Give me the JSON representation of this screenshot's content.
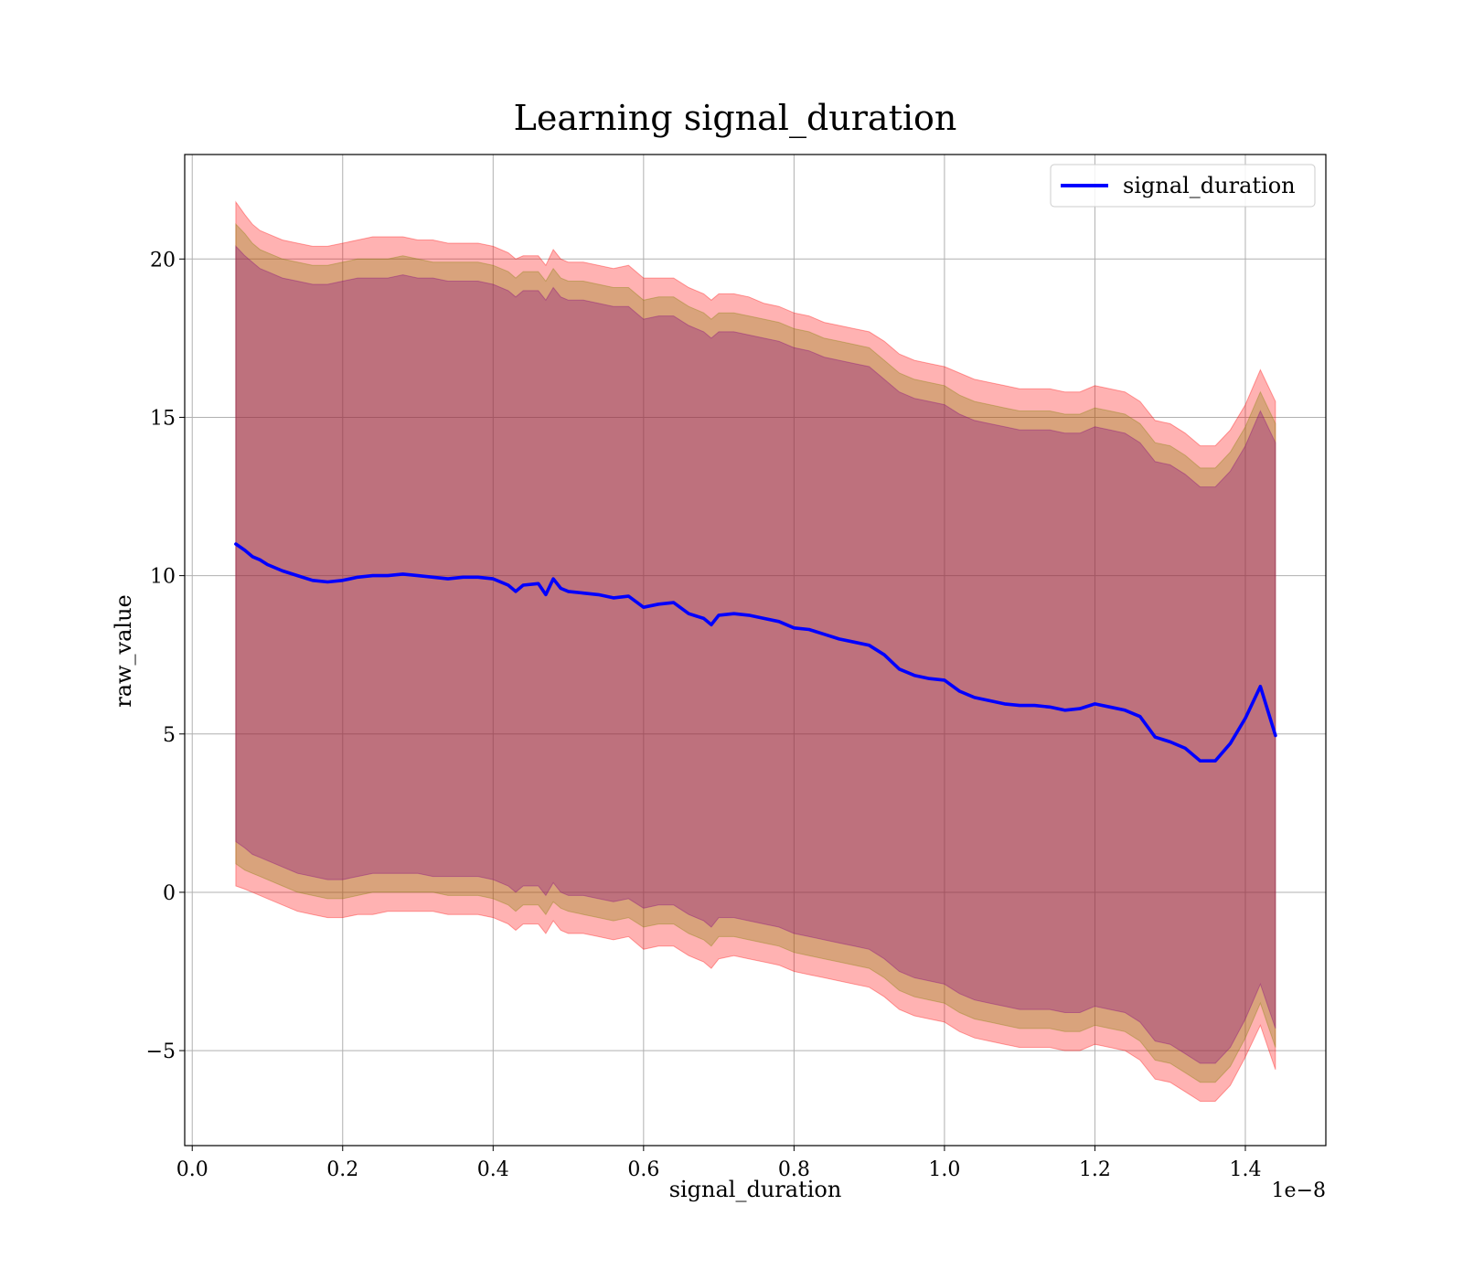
{
  "chart_data": {
    "type": "line",
    "title": "Learning signal_duration",
    "xlabel": "signal_duration",
    "ylabel": "raw_value",
    "x_offset_label": "1e−8",
    "xlim": [
      -0.01,
      1.507
    ],
    "ylim": [
      -8.0,
      23.3
    ],
    "xticks": [
      0.0,
      0.2,
      0.4,
      0.6,
      0.8,
      1.0,
      1.2,
      1.4
    ],
    "xtick_labels": [
      "0.0",
      "0.2",
      "0.4",
      "0.6",
      "0.8",
      "1.0",
      "1.2",
      "1.4"
    ],
    "yticks": [
      -5,
      0,
      5,
      10,
      15,
      20
    ],
    "ytick_labels": [
      "−5",
      "0",
      "5",
      "10",
      "15",
      "20"
    ],
    "grid": true,
    "legend": {
      "position": "top-right",
      "entries": [
        "signal_duration"
      ]
    },
    "colors": {
      "line": "#0000ff",
      "band_outer": "#ff0000",
      "band_middle": "#808000",
      "band_inner": "#800080"
    },
    "series": [
      {
        "name": "signal_duration",
        "x": [
          0.058,
          0.07,
          0.08,
          0.09,
          0.1,
          0.12,
          0.14,
          0.16,
          0.18,
          0.2,
          0.22,
          0.24,
          0.26,
          0.28,
          0.3,
          0.32,
          0.34,
          0.36,
          0.38,
          0.4,
          0.42,
          0.43,
          0.44,
          0.46,
          0.47,
          0.48,
          0.49,
          0.5,
          0.52,
          0.54,
          0.56,
          0.58,
          0.6,
          0.62,
          0.64,
          0.66,
          0.68,
          0.69,
          0.7,
          0.72,
          0.74,
          0.76,
          0.78,
          0.8,
          0.82,
          0.84,
          0.86,
          0.88,
          0.9,
          0.92,
          0.94,
          0.96,
          0.98,
          1.0,
          1.02,
          1.04,
          1.06,
          1.08,
          1.1,
          1.12,
          1.14,
          1.16,
          1.18,
          1.2,
          1.22,
          1.24,
          1.26,
          1.28,
          1.3,
          1.32,
          1.34,
          1.36,
          1.38,
          1.4,
          1.42,
          1.44
        ],
        "values": [
          11.0,
          10.8,
          10.6,
          10.5,
          10.35,
          10.15,
          10.0,
          9.85,
          9.8,
          9.85,
          9.95,
          10.0,
          10.0,
          10.05,
          10.0,
          9.95,
          9.9,
          9.95,
          9.95,
          9.9,
          9.7,
          9.5,
          9.7,
          9.75,
          9.4,
          9.9,
          9.6,
          9.5,
          9.45,
          9.4,
          9.3,
          9.35,
          9.0,
          9.1,
          9.15,
          8.8,
          8.65,
          8.45,
          8.75,
          8.8,
          8.75,
          8.65,
          8.55,
          8.35,
          8.3,
          8.15,
          8.0,
          7.9,
          7.8,
          7.5,
          7.05,
          6.85,
          6.75,
          6.7,
          6.35,
          6.15,
          6.05,
          5.95,
          5.9,
          5.9,
          5.85,
          5.75,
          5.8,
          5.95,
          5.85,
          5.75,
          5.55,
          4.9,
          4.75,
          4.55,
          4.15,
          4.15,
          4.7,
          5.5,
          6.5,
          4.95
        ]
      }
    ],
    "bands": [
      {
        "name": "outer",
        "upper": [
          21.8,
          21.4,
          21.1,
          20.9,
          20.8,
          20.6,
          20.5,
          20.4,
          20.4,
          20.5,
          20.6,
          20.7,
          20.7,
          20.7,
          20.6,
          20.6,
          20.5,
          20.5,
          20.5,
          20.4,
          20.2,
          20.0,
          20.1,
          20.1,
          19.8,
          20.3,
          20.0,
          19.9,
          19.9,
          19.8,
          19.7,
          19.8,
          19.4,
          19.4,
          19.4,
          19.1,
          18.9,
          18.7,
          18.9,
          18.9,
          18.8,
          18.6,
          18.5,
          18.3,
          18.2,
          18.0,
          17.9,
          17.8,
          17.7,
          17.4,
          17.0,
          16.8,
          16.7,
          16.6,
          16.4,
          16.2,
          16.1,
          16.0,
          15.9,
          15.9,
          15.9,
          15.8,
          15.8,
          16.0,
          15.9,
          15.8,
          15.5,
          14.9,
          14.8,
          14.5,
          14.1,
          14.1,
          14.6,
          15.4,
          16.5,
          15.5
        ],
        "lower": [
          0.2,
          0.1,
          0.0,
          -0.1,
          -0.2,
          -0.4,
          -0.6,
          -0.7,
          -0.8,
          -0.8,
          -0.7,
          -0.7,
          -0.6,
          -0.6,
          -0.6,
          -0.6,
          -0.7,
          -0.7,
          -0.7,
          -0.8,
          -1.0,
          -1.2,
          -1.0,
          -1.0,
          -1.3,
          -0.9,
          -1.2,
          -1.3,
          -1.3,
          -1.4,
          -1.5,
          -1.4,
          -1.8,
          -1.7,
          -1.7,
          -2.0,
          -2.2,
          -2.4,
          -2.1,
          -2.0,
          -2.1,
          -2.2,
          -2.3,
          -2.5,
          -2.6,
          -2.7,
          -2.8,
          -2.9,
          -3.0,
          -3.3,
          -3.7,
          -3.9,
          -4.0,
          -4.1,
          -4.4,
          -4.6,
          -4.7,
          -4.8,
          -4.9,
          -4.9,
          -4.9,
          -5.0,
          -5.0,
          -4.8,
          -4.9,
          -5.0,
          -5.3,
          -5.9,
          -6.0,
          -6.3,
          -6.6,
          -6.6,
          -6.1,
          -5.2,
          -4.2,
          -5.6
        ]
      },
      {
        "name": "middle",
        "upper": [
          21.1,
          20.8,
          20.5,
          20.3,
          20.2,
          20.0,
          19.9,
          19.8,
          19.8,
          19.9,
          20.0,
          20.0,
          20.0,
          20.1,
          20.0,
          19.9,
          19.9,
          19.9,
          19.9,
          19.8,
          19.6,
          19.4,
          19.6,
          19.6,
          19.3,
          19.7,
          19.4,
          19.3,
          19.3,
          19.2,
          19.1,
          19.1,
          18.7,
          18.8,
          18.8,
          18.5,
          18.3,
          18.1,
          18.3,
          18.3,
          18.2,
          18.1,
          18.0,
          17.8,
          17.7,
          17.5,
          17.4,
          17.3,
          17.2,
          16.8,
          16.4,
          16.2,
          16.1,
          16.0,
          15.7,
          15.5,
          15.4,
          15.3,
          15.2,
          15.2,
          15.2,
          15.1,
          15.1,
          15.3,
          15.2,
          15.1,
          14.8,
          14.2,
          14.1,
          13.8,
          13.4,
          13.4,
          13.9,
          14.7,
          15.8,
          14.8
        ],
        "lower": [
          0.9,
          0.7,
          0.6,
          0.5,
          0.4,
          0.2,
          0.0,
          -0.1,
          -0.2,
          -0.2,
          -0.1,
          0.0,
          0.0,
          0.0,
          0.0,
          0.0,
          -0.1,
          -0.1,
          -0.1,
          -0.2,
          -0.4,
          -0.6,
          -0.4,
          -0.4,
          -0.7,
          -0.3,
          -0.5,
          -0.6,
          -0.7,
          -0.8,
          -0.9,
          -0.8,
          -1.1,
          -1.0,
          -1.0,
          -1.3,
          -1.5,
          -1.7,
          -1.4,
          -1.4,
          -1.5,
          -1.6,
          -1.7,
          -1.9,
          -2.0,
          -2.1,
          -2.2,
          -2.3,
          -2.4,
          -2.7,
          -3.1,
          -3.3,
          -3.4,
          -3.5,
          -3.8,
          -4.0,
          -4.1,
          -4.2,
          -4.3,
          -4.3,
          -4.3,
          -4.4,
          -4.4,
          -4.2,
          -4.3,
          -4.4,
          -4.7,
          -5.3,
          -5.4,
          -5.7,
          -6.0,
          -6.0,
          -5.5,
          -4.6,
          -3.5,
          -4.9
        ]
      },
      {
        "name": "inner",
        "upper": [
          20.4,
          20.1,
          19.9,
          19.7,
          19.6,
          19.4,
          19.3,
          19.2,
          19.2,
          19.3,
          19.4,
          19.4,
          19.4,
          19.5,
          19.4,
          19.4,
          19.3,
          19.3,
          19.3,
          19.2,
          19.0,
          18.8,
          19.0,
          19.0,
          18.7,
          19.1,
          18.8,
          18.7,
          18.7,
          18.6,
          18.5,
          18.5,
          18.1,
          18.2,
          18.2,
          17.9,
          17.7,
          17.5,
          17.7,
          17.7,
          17.6,
          17.5,
          17.4,
          17.2,
          17.1,
          16.9,
          16.8,
          16.7,
          16.6,
          16.2,
          15.8,
          15.6,
          15.5,
          15.4,
          15.1,
          14.9,
          14.8,
          14.7,
          14.6,
          14.6,
          14.6,
          14.5,
          14.5,
          14.7,
          14.6,
          14.5,
          14.2,
          13.6,
          13.5,
          13.2,
          12.8,
          12.8,
          13.3,
          14.1,
          15.2,
          14.2
        ],
        "lower": [
          1.6,
          1.4,
          1.2,
          1.1,
          1.0,
          0.8,
          0.6,
          0.5,
          0.4,
          0.4,
          0.5,
          0.6,
          0.6,
          0.6,
          0.6,
          0.5,
          0.5,
          0.5,
          0.5,
          0.4,
          0.2,
          0.0,
          0.2,
          0.2,
          -0.1,
          0.3,
          0.0,
          -0.1,
          -0.1,
          -0.2,
          -0.3,
          -0.2,
          -0.5,
          -0.4,
          -0.4,
          -0.7,
          -0.9,
          -1.1,
          -0.8,
          -0.8,
          -0.9,
          -1.0,
          -1.1,
          -1.3,
          -1.4,
          -1.5,
          -1.6,
          -1.7,
          -1.8,
          -2.1,
          -2.5,
          -2.7,
          -2.8,
          -2.9,
          -3.2,
          -3.4,
          -3.5,
          -3.6,
          -3.7,
          -3.7,
          -3.7,
          -3.8,
          -3.8,
          -3.6,
          -3.7,
          -3.8,
          -4.1,
          -4.7,
          -4.8,
          -5.1,
          -5.4,
          -5.4,
          -4.9,
          -4.0,
          -2.9,
          -4.3
        ]
      }
    ]
  }
}
